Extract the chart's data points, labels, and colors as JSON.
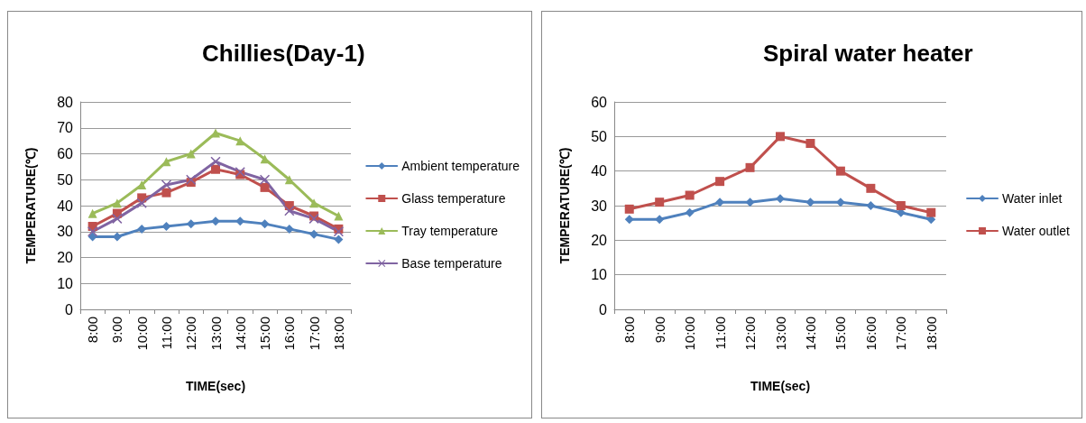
{
  "chart_data": [
    {
      "type": "line",
      "title": "Chillies(Day-1)",
      "xlabel": "TIME(sec)",
      "ylabel": "TEMPERATURE(℃)",
      "categories": [
        "8:00",
        "9:00",
        "10:00",
        "11:00",
        "12:00",
        "13:00",
        "14:00",
        "15:00",
        "16:00",
        "17:00",
        "18:00"
      ],
      "series": [
        {
          "name": "Ambient temperature",
          "color": "#4f81bd",
          "marker": "diamond",
          "values": [
            28,
            28,
            31,
            32,
            33,
            34,
            34,
            33,
            31,
            29,
            27
          ]
        },
        {
          "name": "Glass temperature",
          "color": "#c0504d",
          "marker": "square",
          "values": [
            32,
            37,
            43,
            45,
            49,
            54,
            52,
            47,
            40,
            36,
            31
          ]
        },
        {
          "name": "Tray temperature",
          "color": "#9bbb59",
          "marker": "triangle",
          "values": [
            37,
            41,
            48,
            57,
            60,
            68,
            65,
            58,
            50,
            41,
            36
          ]
        },
        {
          "name": "Base temperature",
          "color": "#8064a2",
          "marker": "cross",
          "values": [
            30,
            35,
            41,
            48,
            50,
            57,
            53,
            50,
            38,
            35,
            30
          ]
        }
      ],
      "ylim": [
        0,
        80
      ],
      "yticks": [
        0,
        10,
        20,
        30,
        40,
        50,
        60,
        70,
        80
      ],
      "grid": "y",
      "legend": "right"
    },
    {
      "type": "line",
      "title": "Spiral water heater",
      "xlabel": "TIME(sec)",
      "ylabel": "TEMPERATURE(℃)",
      "categories": [
        "8:00",
        "9:00",
        "10:00",
        "11:00",
        "12:00",
        "13:00",
        "14:00",
        "15:00",
        "16:00",
        "17:00",
        "18:00"
      ],
      "series": [
        {
          "name": "Water inlet",
          "color": "#4f81bd",
          "marker": "diamond",
          "values": [
            26,
            26,
            28,
            31,
            31,
            32,
            31,
            31,
            30,
            28,
            26
          ]
        },
        {
          "name": "Water outlet",
          "color": "#c0504d",
          "marker": "square",
          "values": [
            29,
            31,
            33,
            37,
            41,
            50,
            48,
            40,
            35,
            30,
            28
          ]
        }
      ],
      "ylim": [
        0,
        60
      ],
      "yticks": [
        0,
        10,
        20,
        30,
        40,
        50,
        60
      ],
      "grid": "y",
      "legend": "right"
    }
  ]
}
